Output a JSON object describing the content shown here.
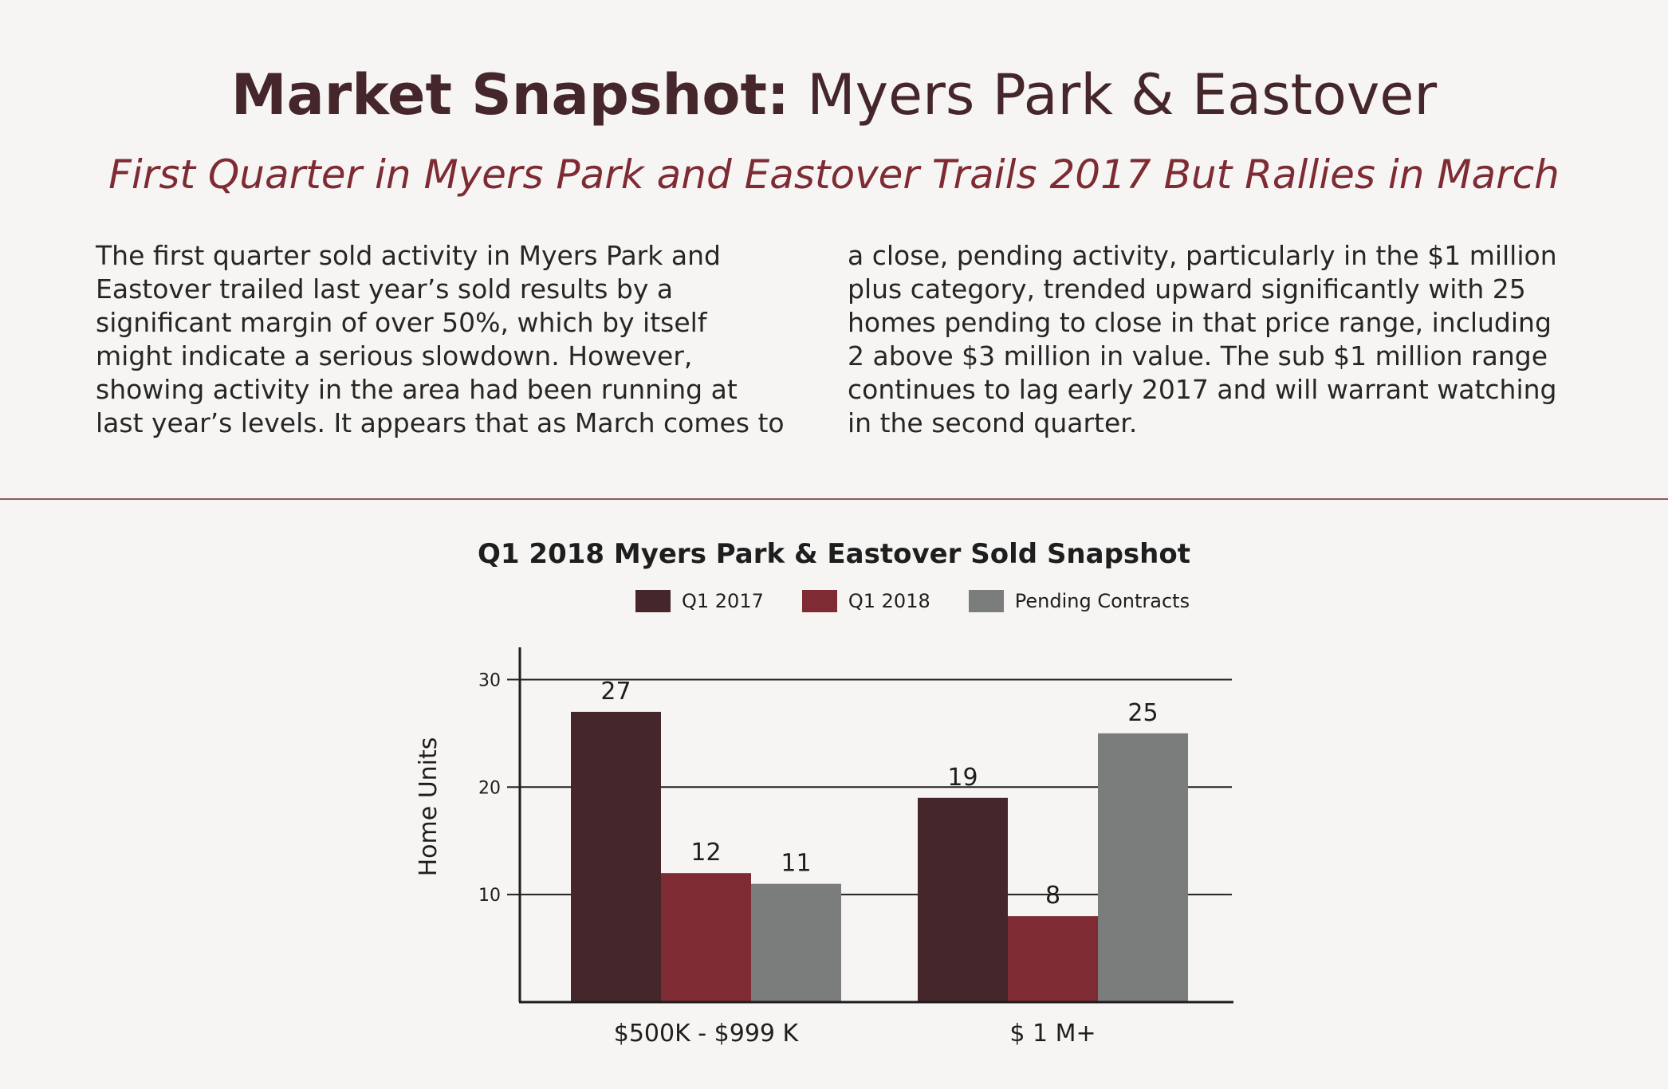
{
  "header": {
    "title_bold": "Market Snapshot:",
    "title_light": "Myers Park & Eastover",
    "subtitle": "First Quarter in Myers Park and Eastover Trails 2017 But Rallies in March"
  },
  "body_text": {
    "left_lines": [
      "The first quarter sold activity in Myers Park and",
      "Eastover trailed last year’s sold results by a",
      "significant margin of over 50%, which by itself",
      "might indicate a serious slowdown. However,",
      "showing activity in the area had been running at",
      "last year’s levels. It appears that as March comes to"
    ],
    "right_lines": [
      "a close, pending activity, particularly in the $1 million",
      "plus category, trended upward significantly with 25",
      "homes pending to close in that price range, including",
      "2 above $3 million in value. The sub $1 million range",
      "continues to lag early 2017 and will warrant watching",
      "in the second quarter."
    ]
  },
  "chart_data": {
    "type": "bar",
    "title": "Q1 2018 Myers Park & Eastover Sold Snapshot",
    "xlabel": "",
    "ylabel": "Home Units",
    "categories": [
      "$500K - $999 K",
      "$ 1 M+"
    ],
    "series": [
      {
        "name": "Q1 2017",
        "values": [
          27,
          19
        ],
        "color": "#45262a"
      },
      {
        "name": "Q1 2018",
        "values": [
          12,
          8
        ],
        "color": "#7e2b33"
      },
      {
        "name": "Pending Contracts",
        "values": [
          11,
          25
        ],
        "color": "#7b7d7c"
      }
    ],
    "data_labels": [
      [
        "27",
        "19"
      ],
      [
        "12",
        "8"
      ],
      [
        "11",
        "25"
      ]
    ],
    "ylim": [
      0,
      33
    ],
    "yticks": [
      10,
      20,
      30
    ],
    "grid": true,
    "legend_position": "top"
  }
}
